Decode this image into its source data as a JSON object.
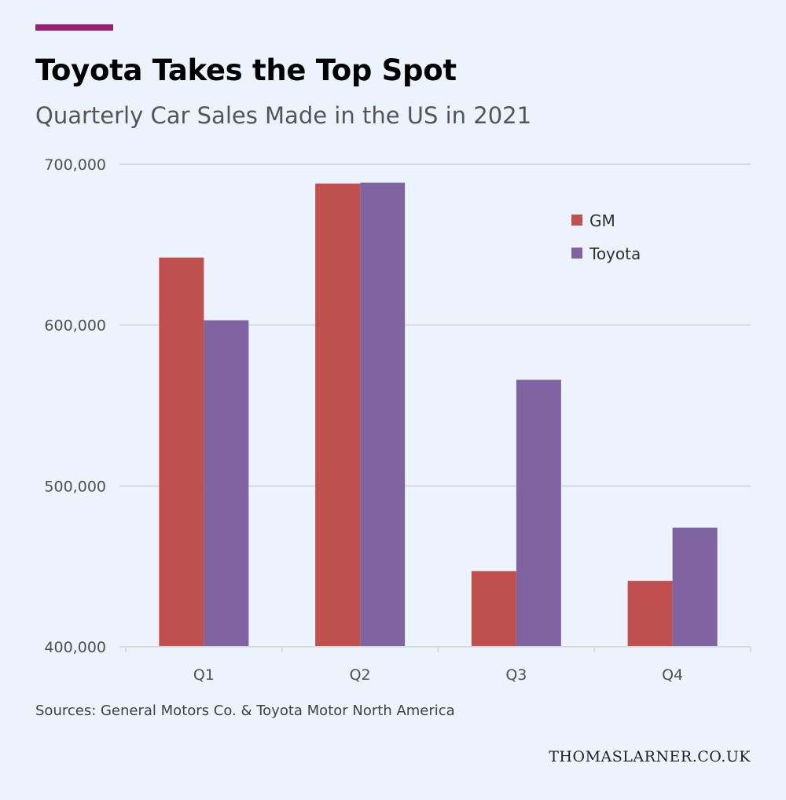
{
  "colors": {
    "accent": "#9b1f73",
    "gm": "#c0504d",
    "toyota": "#8064a2",
    "grid": "#d6d9de",
    "background": "#ecf3fd"
  },
  "header": {
    "title": "Toyota Takes the Top Spot",
    "subtitle": "Quarterly Car Sales Made in the US in 2021"
  },
  "footer": {
    "source": "Sources: General Motors Co. & Toyota Motor North America",
    "site": "THOMASLARNER.CO.UK"
  },
  "chart_data": {
    "type": "bar",
    "title": "Toyota Takes the Top Spot",
    "subtitle": "Quarterly Car Sales Made in the US in 2021",
    "categories": [
      "Q1",
      "Q2",
      "Q3",
      "Q4"
    ],
    "series": [
      {
        "name": "GM",
        "values": [
          642000,
          688000,
          447000,
          441000
        ]
      },
      {
        "name": "Toyota",
        "values": [
          603000,
          688500,
          566000,
          474000
        ]
      }
    ],
    "ylim": [
      400000,
      700000
    ],
    "yticks": [
      400000,
      500000,
      600000,
      700000
    ],
    "ytick_labels": [
      "400,000",
      "500,000",
      "600,000",
      "700,000"
    ],
    "xlabel": "",
    "ylabel": "",
    "grid": true,
    "legend_position": "top-right"
  }
}
